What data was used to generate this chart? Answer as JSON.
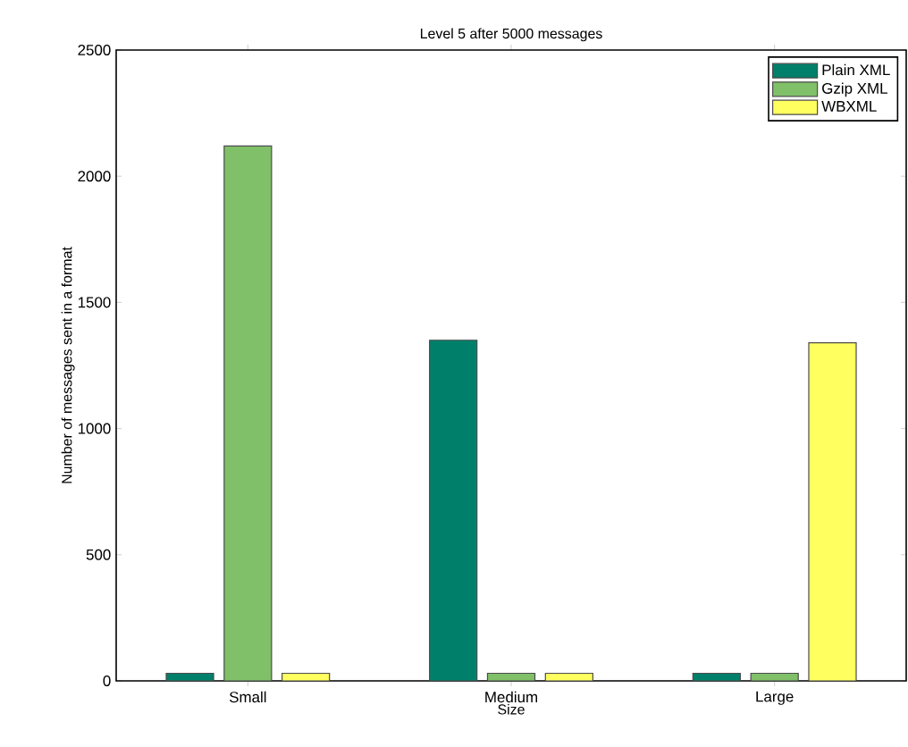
{
  "chart_data": {
    "type": "bar",
    "title": "Level 5 after 5000 messages",
    "xlabel": "Size",
    "ylabel": "Number of messages sent in a format",
    "categories": [
      "Small",
      "Medium",
      "Large"
    ],
    "series": [
      {
        "name": "Plain XML",
        "color": "#00806a",
        "values": [
          30,
          1350,
          30
        ]
      },
      {
        "name": "Gzip XML",
        "color": "#80c068",
        "values": [
          2120,
          30,
          30
        ]
      },
      {
        "name": "WBXML",
        "color": "#ffff60",
        "values": [
          30,
          30,
          1340
        ]
      }
    ],
    "ylim": [
      0,
      2500
    ],
    "yticks": [
      0,
      500,
      1000,
      1500,
      2000,
      2500
    ],
    "grid": false,
    "legend": "top right"
  }
}
